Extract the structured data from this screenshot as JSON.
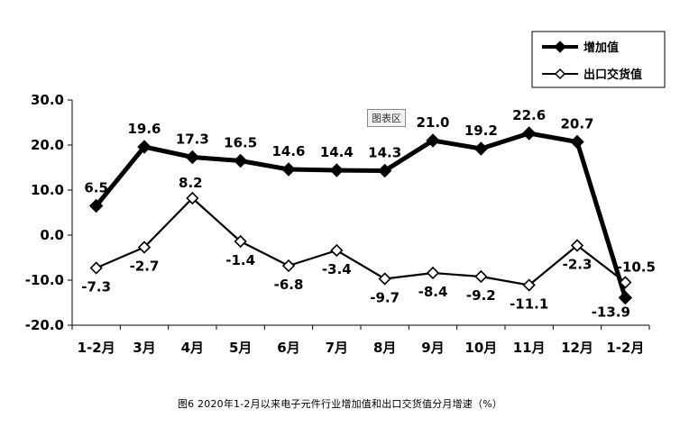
{
  "chart_data": {
    "type": "line",
    "categories": [
      "1-2月",
      "3月",
      "4月",
      "5月",
      "6月",
      "7月",
      "8月",
      "9月",
      "10月",
      "11月",
      "12月",
      "1-2月"
    ],
    "series": [
      {
        "name": "增加值",
        "values": [
          6.5,
          19.6,
          17.3,
          16.5,
          14.6,
          14.4,
          14.3,
          21.0,
          19.2,
          22.6,
          20.7,
          -13.9
        ],
        "labels": [
          "6.5",
          "19.6",
          "17.3",
          "16.5",
          "14.6",
          "14.4",
          "14.3",
          "21.0",
          "19.2",
          "22.6",
          "20.7",
          "-13.9"
        ],
        "color": "#000000",
        "marker": "filled-diamond"
      },
      {
        "name": "出口交货值",
        "values": [
          -7.3,
          -2.7,
          8.2,
          -1.4,
          -6.8,
          -3.4,
          -9.7,
          -8.4,
          -9.2,
          -11.1,
          -2.3,
          -10.5
        ],
        "labels": [
          "-7.3",
          "-2.7",
          "8.2",
          "-1.4",
          "-6.8",
          "-3.4",
          "-9.7",
          "-8.4",
          "-9.2",
          "-11.1",
          "-2.3",
          "-10.5"
        ],
        "color": "#000000",
        "marker": "hollow-diamond"
      }
    ],
    "ylim": [
      -20,
      30
    ],
    "yticks": [
      "-20.0",
      "-10.0",
      "0.0",
      "10.0",
      "20.0",
      "30.0"
    ],
    "grid": false,
    "legend_position": "top-right"
  },
  "plot_area_tag": "图表区",
  "caption": "图6  2020年1-2月以来电子元件行业增加值和出口交货值分月增速（%）"
}
